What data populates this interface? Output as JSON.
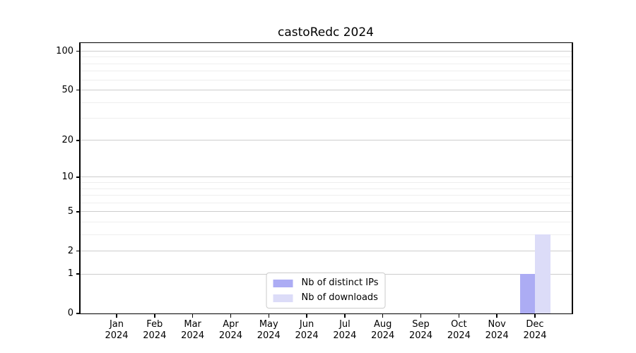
{
  "chart_data": {
    "type": "bar",
    "title": "castoRedc 2024",
    "categories": [
      "Jan",
      "Feb",
      "Mar",
      "Apr",
      "May",
      "Jun",
      "Jul",
      "Aug",
      "Sep",
      "Oct",
      "Nov",
      "Dec"
    ],
    "category_year": "2024",
    "series": [
      {
        "name": "Nb of distinct IPs",
        "key": "distinct-ips",
        "color": "#acacf4",
        "values": [
          0,
          0,
          0,
          0,
          0,
          0,
          0,
          0,
          0,
          0,
          0,
          1
        ]
      },
      {
        "name": "Nb of downloads",
        "key": "downloads",
        "color": "#dcdcf8",
        "values": [
          0,
          0,
          0,
          0,
          0,
          0,
          0,
          0,
          0,
          0,
          0,
          3
        ]
      }
    ],
    "yticks": [
      0,
      1,
      2,
      5,
      10,
      20,
      50,
      100
    ],
    "minor_gridlines": [
      3,
      4,
      6,
      7,
      8,
      9,
      30,
      40,
      60,
      70,
      80,
      90
    ],
    "scale": "log1p",
    "ylim": [
      0,
      117
    ],
    "xlabel": "",
    "ylabel": "",
    "grid": "horizontal",
    "legend_position": "lower center"
  },
  "colors": {
    "bar_distinct_ips": "#acacf4",
    "bar_downloads": "#dcdcf8",
    "major_gridline": "#cdcdcd",
    "minor_gridline": "#eeeeee",
    "axis": "#000000",
    "legend_border": "#cccccc",
    "text": "#000000",
    "background": "#ffffff"
  }
}
